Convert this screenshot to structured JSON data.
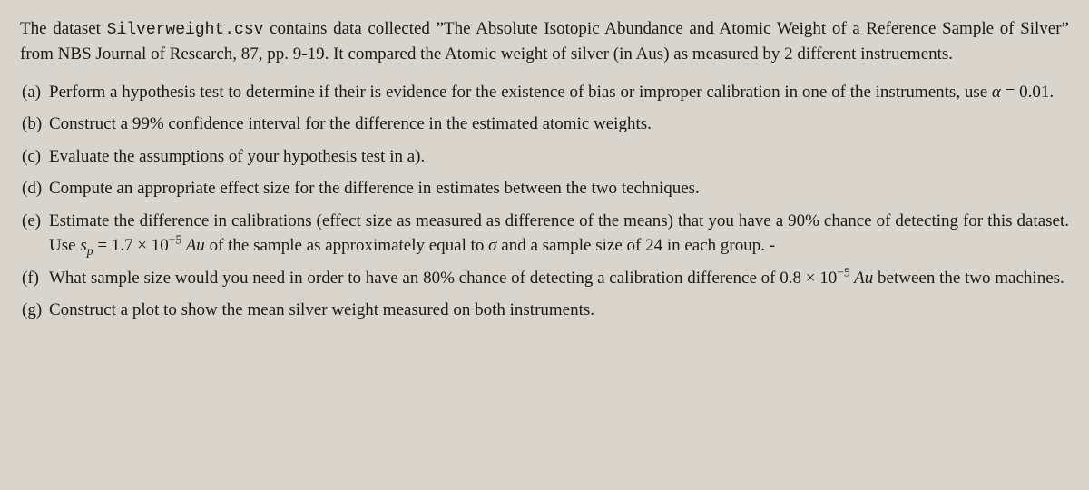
{
  "intro": {
    "pre": "The dataset ",
    "filename": "Silverweight.csv",
    "mid": " contains data collected ”The Absolute Isotopic Abundance and Atomic Weight of a Reference Sample of Silver” from NBS Journal of Research, 87, pp. 9-19. It compared the Atomic weight of silver (in Aus) as measured by 2 different instruements."
  },
  "items": [
    {
      "label": "(a)",
      "text_pre": "Perform a hypothesis test to determine if their is evidence for the existence of bias or improper calibration in one of the instruments, use ",
      "alpha_sym": "α",
      "alpha_eq": " = 0.01.",
      "text_post": ""
    },
    {
      "label": "(b)",
      "full": "Construct a 99% confidence interval for the difference in the estimated atomic weights."
    },
    {
      "label": "(c)",
      "full": "Evaluate the assumptions of your hypothesis test in a)."
    },
    {
      "label": "(d)",
      "full": "Compute an appropriate effect size for the difference in estimates between the two techniques."
    },
    {
      "label": "(e)",
      "pre": "Estimate the difference in calibrations (effect size as measured as difference of the means) that you have a 90% chance of detecting for this dataset.  Use ",
      "sp_sym": "s",
      "sp_sub": "p",
      "eq": " = 1.7 × 10",
      "exp": "−5",
      "au": " Au",
      "mid": " of the sample as approximately equal to ",
      "sigma": "σ",
      "post": " and a sample size of 24 in each group. -"
    },
    {
      "label": "(f)",
      "pre": "What sample size would you need in order to have an 80% chance of detecting a calibration difference of 0.8 × 10",
      "exp": "−5",
      "au": " Au",
      "post": " between the two machines."
    },
    {
      "label": "(g)",
      "full": "Construct a plot to show the mean silver weight measured on both instruments."
    }
  ]
}
